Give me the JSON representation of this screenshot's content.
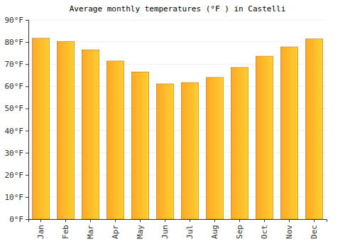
{
  "chart_data": {
    "type": "bar",
    "title": "Average monthly temperatures (°F ) in Castelli",
    "categories": [
      "Jan",
      "Feb",
      "Mar",
      "Apr",
      "May",
      "Jun",
      "Jul",
      "Aug",
      "Sep",
      "Oct",
      "Nov",
      "Dec"
    ],
    "values": [
      81.7,
      80.3,
      76.5,
      71.4,
      66.5,
      61.1,
      61.7,
      64.0,
      68.5,
      73.6,
      77.8,
      81.4
    ],
    "color": "#ffa726",
    "ylim": [
      0,
      90
    ],
    "yticks": [
      {
        "value": 0,
        "label": "0°F"
      },
      {
        "value": 10,
        "label": "10°F"
      },
      {
        "value": 20,
        "label": "20°F"
      },
      {
        "value": 30,
        "label": "30°F"
      },
      {
        "value": 40,
        "label": "40°F"
      },
      {
        "value": 50,
        "label": "50°F"
      },
      {
        "value": 60,
        "label": "60°F"
      },
      {
        "value": 70,
        "label": "70°F"
      },
      {
        "value": 80,
        "label": "80°F"
      },
      {
        "value": 90,
        "label": "90°F"
      }
    ],
    "grid": true
  }
}
